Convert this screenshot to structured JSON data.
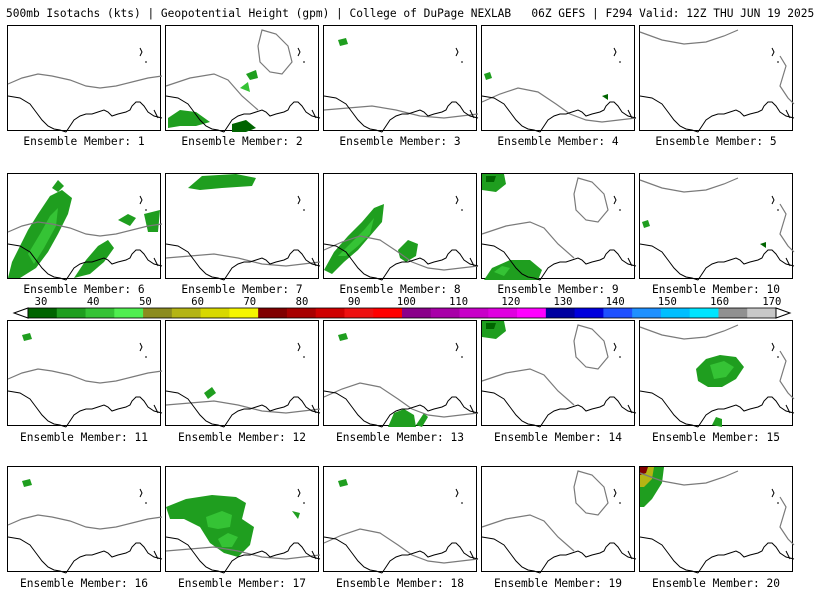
{
  "header": "500mb Isotachs (kts) | Geopotential Height (gpm) | College of DuPage NEXLAB   06Z GEFS | F294 Valid: 12Z THU JUN 19 2025",
  "members": [
    {
      "label": "Ensemble Member: 1",
      "winds": []
    },
    {
      "label": "Ensemble Member: 2",
      "winds": [
        "sw",
        "nw-small"
      ]
    },
    {
      "label": "Ensemble Member: 3",
      "winds": [
        "nw-dot"
      ]
    },
    {
      "label": "Ensemble Member: 4",
      "winds": [
        "w-dot"
      ]
    },
    {
      "label": "Ensemble Member: 5",
      "winds": []
    },
    {
      "label": "Ensemble Member: 6",
      "winds": [
        "big-w",
        "center"
      ]
    },
    {
      "label": "Ensemble Member: 7",
      "winds": [
        "top"
      ]
    },
    {
      "label": "Ensemble Member: 8",
      "winds": [
        "w-band",
        "center-blob"
      ]
    },
    {
      "label": "Ensemble Member: 9",
      "winds": [
        "top-left",
        "bottom"
      ]
    },
    {
      "label": "Ensemble Member: 10",
      "winds": [
        "w-dot"
      ]
    },
    {
      "label": "Ensemble Member: 11",
      "winds": [
        "nw-dot"
      ]
    },
    {
      "label": "Ensemble Member: 12",
      "winds": [
        "mid-dot"
      ]
    },
    {
      "label": "Ensemble Member: 13",
      "winds": [
        "nw-dot",
        "bottom-center"
      ]
    },
    {
      "label": "Ensemble Member: 14",
      "winds": [
        "top-left"
      ]
    },
    {
      "label": "Ensemble Member: 15",
      "winds": [
        "ne-big",
        "bottom-right"
      ]
    },
    {
      "label": "Ensemble Member: 16",
      "winds": [
        "nw-dot"
      ]
    },
    {
      "label": "Ensemble Member: 17",
      "winds": [
        "mid-large"
      ]
    },
    {
      "label": "Ensemble Member: 18",
      "winds": [
        "nw-dot"
      ]
    },
    {
      "label": "Ensemble Member: 19",
      "winds": []
    },
    {
      "label": "Ensemble Member: 20",
      "winds": [
        "corner-strong"
      ]
    }
  ],
  "colorbar": {
    "labels": [
      "30",
      "40",
      "50",
      "60",
      "70",
      "80",
      "90",
      "100",
      "110",
      "120",
      "130",
      "140",
      "150",
      "160",
      "170"
    ],
    "colors": [
      "#006400",
      "#1f9e1f",
      "#35c335",
      "#50ee50",
      "#8c8c1e",
      "#b4b414",
      "#d8d800",
      "#f5f500",
      "#800000",
      "#a80000",
      "#cf0000",
      "#ee1010",
      "#ff0000",
      "#8a008a",
      "#a800a8",
      "#c800c8",
      "#e000e0",
      "#ff00ff",
      "#0000a0",
      "#0000dd",
      "#1e50ff",
      "#1e90ff",
      "#00bfff",
      "#00e5ff",
      "#909090",
      "#c8c8c8"
    ]
  },
  "colors": {
    "coast": "#000000",
    "height_contour": "#7a7a7a",
    "wind_dark": "#006400",
    "wind_mid": "#1f9e1f",
    "wind_light": "#35c335"
  }
}
